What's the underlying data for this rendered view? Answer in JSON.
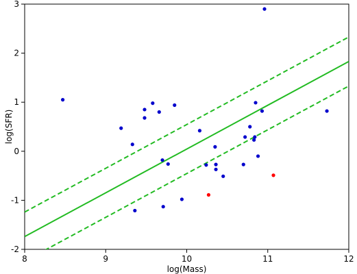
{
  "chart_data": {
    "type": "scatter",
    "title": "",
    "xlabel": "log(Mass)",
    "ylabel": "log(SFR)",
    "xlim": [
      8,
      12
    ],
    "ylim": [
      -2,
      3
    ],
    "x_ticks": [
      8,
      9,
      10,
      11,
      12
    ],
    "y_ticks": [
      -2,
      -1,
      0,
      1,
      2,
      3
    ],
    "grid": false,
    "colors": {
      "blue_points": "#0000cc",
      "red_points": "#ff0000",
      "lines": "#22bb22"
    },
    "series": [
      {
        "color": "blue",
        "points": [
          [
            8.47,
            1.05
          ],
          [
            9.19,
            0.47
          ],
          [
            9.33,
            0.14
          ],
          [
            9.36,
            -1.21
          ],
          [
            9.48,
            0.85
          ],
          [
            9.48,
            0.68
          ],
          [
            9.58,
            0.98
          ],
          [
            9.66,
            0.8
          ],
          [
            9.7,
            -0.18
          ],
          [
            9.71,
            -1.13
          ],
          [
            9.77,
            -0.26
          ],
          [
            9.85,
            0.94
          ],
          [
            9.94,
            -0.98
          ],
          [
            10.16,
            0.42
          ],
          [
            10.24,
            -0.28
          ],
          [
            10.35,
            0.09
          ],
          [
            10.36,
            -0.27
          ],
          [
            10.36,
            -0.37
          ],
          [
            10.45,
            -0.51
          ],
          [
            10.7,
            -0.27
          ],
          [
            10.72,
            0.29
          ],
          [
            10.78,
            0.5
          ],
          [
            10.83,
            0.23
          ],
          [
            10.84,
            0.29
          ],
          [
            10.85,
            0.99
          ],
          [
            10.88,
            -0.1
          ],
          [
            10.93,
            0.82
          ],
          [
            10.96,
            2.9
          ],
          [
            11.73,
            0.82
          ]
        ]
      },
      {
        "color": "red",
        "points": [
          [
            10.27,
            -0.89
          ],
          [
            11.07,
            -0.49
          ]
        ]
      }
    ],
    "lines": [
      {
        "style": "solid",
        "x": [
          8,
          12
        ],
        "y": [
          -1.74,
          1.83
        ]
      },
      {
        "style": "dashed",
        "x": [
          8,
          12
        ],
        "y": [
          -1.24,
          2.33
        ]
      },
      {
        "style": "dashed",
        "x": [
          8,
          12
        ],
        "y": [
          -2.24,
          1.33
        ]
      }
    ]
  }
}
